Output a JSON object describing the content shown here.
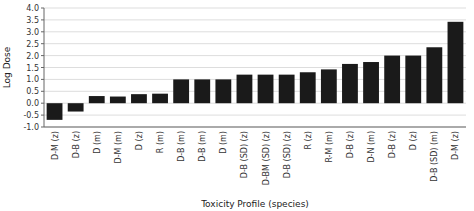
{
  "chart_data": {
    "type": "bar",
    "categories": [
      "D-M (z)",
      "D-B (z)",
      "D (m)",
      "D-M (m)",
      "D (z)",
      "R (m)",
      "D-B (m)",
      "D-B (m)",
      "D (m)",
      "D-B (SD) (z)",
      "D-BM (SD) (z)",
      "D-B (SD) (z)",
      "R (z)",
      "R-M (m)",
      "D-B (z)",
      "D-N (m)",
      "D-B (z)",
      "D (z)",
      "D-B (SD) (m)",
      "D-M (z)"
    ],
    "values": [
      -0.7,
      -0.35,
      0.3,
      0.28,
      0.38,
      0.4,
      1.0,
      1.0,
      1.0,
      1.2,
      1.2,
      1.2,
      1.3,
      1.42,
      1.65,
      1.73,
      2.0,
      2.0,
      2.35,
      3.42
    ],
    "color": "#1a1a1a",
    "xlabel": "Toxicity Profile (species)",
    "ylabel": "Log Dose",
    "ylim": [
      -1.0,
      4.0
    ],
    "yticks": [
      {
        "value": -1.0,
        "label": "-1.0"
      },
      {
        "value": -0.5,
        "label": "-0.5"
      },
      {
        "value": 0.0,
        "label": "0.0"
      },
      {
        "value": 0.5,
        "label": "0.5"
      },
      {
        "value": 1.0,
        "label": "1.0"
      },
      {
        "value": 1.5,
        "label": "1.5"
      },
      {
        "value": 2.0,
        "label": "2.0"
      },
      {
        "value": 2.5,
        "label": "2.5"
      },
      {
        "value": 3.0,
        "label": "3.0"
      },
      {
        "value": 3.5,
        "label": "3.5"
      },
      {
        "value": 4.0,
        "label": "4.0"
      }
    ],
    "grid": true
  }
}
